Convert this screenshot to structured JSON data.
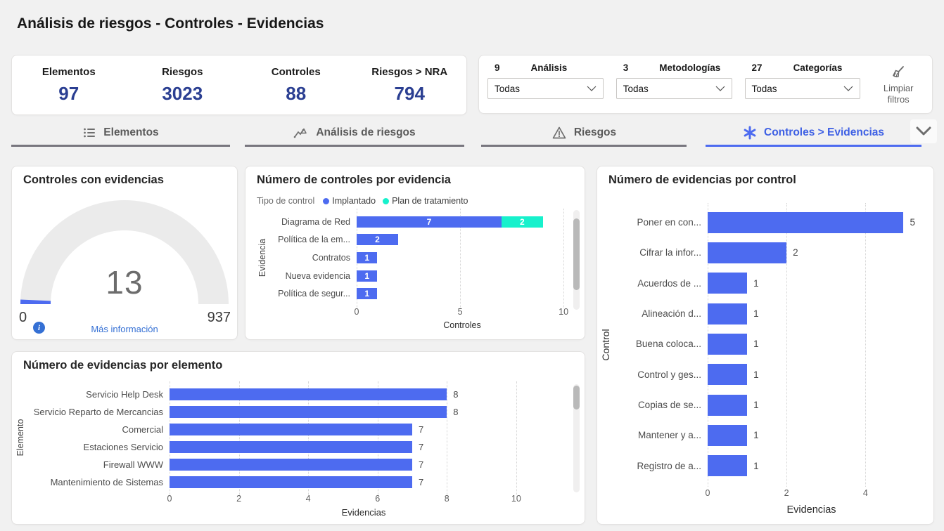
{
  "page": {
    "title": "Análisis de riesgos - Controles - Evidencias"
  },
  "kpis": [
    {
      "label": "Elementos",
      "value": "97"
    },
    {
      "label": "Riesgos",
      "value": "3023"
    },
    {
      "label": "Controles",
      "value": "88"
    },
    {
      "label": "Riesgos > NRA",
      "value": "794"
    }
  ],
  "filters": {
    "groups": [
      {
        "count": "9",
        "label": "Análisis",
        "value": "Todas"
      },
      {
        "count": "3",
        "label": "Metodologías",
        "value": "Todas"
      },
      {
        "count": "27",
        "label": "Categorías",
        "value": "Todas"
      }
    ],
    "clear_button": "Limpiar filtros"
  },
  "tabs": [
    {
      "label": "Elementos",
      "icon": "list-icon",
      "active": false
    },
    {
      "label": "Análisis de riesgos",
      "icon": "risk-analysis-icon",
      "active": false
    },
    {
      "label": "Riesgos",
      "icon": "warning-icon",
      "active": false
    },
    {
      "label": "Controles > Evidencias",
      "icon": "asterisk-icon",
      "active": true
    }
  ],
  "colors": {
    "accent_blue": "#4D6BF0",
    "teal": "#17F1CC",
    "kpi_value_navy": "#2B3F92",
    "link_blue": "#3570D4"
  },
  "gauge": {
    "title": "Controles con evidencias",
    "value": 13,
    "min": 0,
    "max": 937,
    "link": "Más información"
  },
  "chart_data": [
    {
      "id": "controls_by_evidence",
      "type": "bar",
      "orientation": "horizontal",
      "title": "Número de controles por evidencia",
      "legend_title": "Tipo de control",
      "legend_position": "top",
      "categories": [
        "Diagrama de Red",
        "Política de la em...",
        "Contratos",
        "Nueva evidencia",
        "Política de segur..."
      ],
      "series": [
        {
          "name": "Implantado",
          "color": "#4D6BF0",
          "values": [
            7,
            2,
            1,
            1,
            1
          ]
        },
        {
          "name": "Plan de tratamiento",
          "color": "#17F1CC",
          "values": [
            2,
            0,
            0,
            0,
            0
          ]
        }
      ],
      "stacked": true,
      "xlabel": "Controles",
      "ylabel": "Evidencia",
      "x_ticks": [
        0,
        5,
        10
      ],
      "xlim": [
        0,
        10.2
      ],
      "grid": true,
      "value_labels": "inside"
    },
    {
      "id": "evidence_by_control",
      "type": "bar",
      "orientation": "horizontal",
      "title": "Número de evidencias por control",
      "categories": [
        "Poner en con...",
        "Cifrar la infor...",
        "Acuerdos de ...",
        "Alineación d...",
        "Buena coloca...",
        "Control y ges...",
        "Copias de se...",
        "Mantener y a...",
        "Registro de a..."
      ],
      "values": [
        5,
        2,
        1,
        1,
        1,
        1,
        1,
        1,
        1
      ],
      "color": "#4D6BF0",
      "xlabel": "Evidencias",
      "ylabel": "Control",
      "x_ticks": [
        0,
        2,
        4
      ],
      "xlim": [
        0,
        5.26
      ],
      "grid": true,
      "value_labels": "outside"
    },
    {
      "id": "evidence_by_element",
      "type": "bar",
      "orientation": "horizontal",
      "title": "Número de evidencias por elemento",
      "categories": [
        "Servicio Help Desk",
        "Servicio Reparto de Mercancias",
        "Comercial",
        "Estaciones Servicio",
        "Firewall WWW",
        "Mantenimiento de Sistemas"
      ],
      "values": [
        8,
        8,
        7,
        7,
        7,
        7
      ],
      "color": "#4D6BF0",
      "xlabel": "Evidencias",
      "ylabel": "Elemento",
      "x_ticks": [
        0,
        2,
        4,
        6,
        8,
        10
      ],
      "xlim": [
        0,
        11.2
      ],
      "grid": true,
      "value_labels": "outside"
    }
  ]
}
